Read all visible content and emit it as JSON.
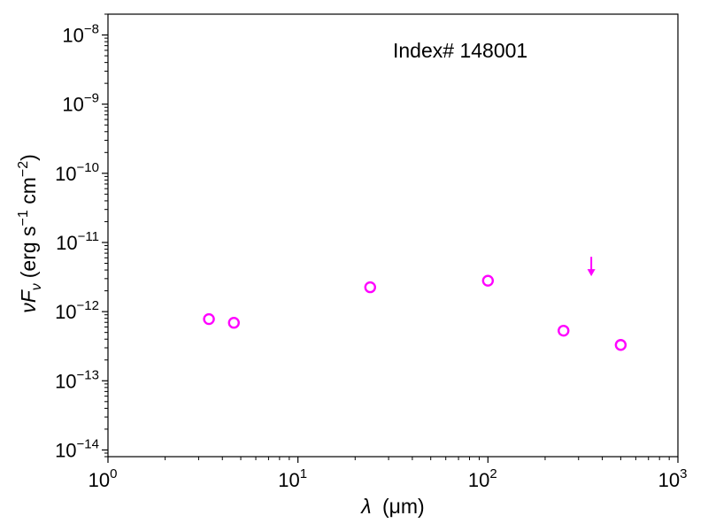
{
  "chart_data": {
    "type": "scatter",
    "annotation": "Index# 148001",
    "xlabel": {
      "symbol": "λ",
      "unit": "(μm)"
    },
    "ylabel": {
      "symbol": "νF",
      "subscript": "ν",
      "unit_prefix": "(erg s",
      "exp1": "−1",
      "unit_mid": " cm",
      "exp2": "−2",
      "unit_suffix": ")"
    },
    "x_scale": "log",
    "y_scale": "log",
    "xlim": [
      1,
      1000
    ],
    "ylim": [
      8e-15,
      2e-08
    ],
    "x_ticks": [
      {
        "value": 1,
        "base": "10",
        "exp": "0"
      },
      {
        "value": 10,
        "base": "10",
        "exp": "1"
      },
      {
        "value": 100,
        "base": "10",
        "exp": "2"
      },
      {
        "value": 1000,
        "base": "10",
        "exp": "3"
      }
    ],
    "y_ticks": [
      {
        "value": 1e-14,
        "base": "10",
        "exp": "−14"
      },
      {
        "value": 1e-13,
        "base": "10",
        "exp": "−13"
      },
      {
        "value": 1e-12,
        "base": "10",
        "exp": "−12"
      },
      {
        "value": 1e-11,
        "base": "10",
        "exp": "−11"
      },
      {
        "value": 1e-10,
        "base": "10",
        "exp": "−10"
      },
      {
        "value": 1e-09,
        "base": "10",
        "exp": "−9"
      },
      {
        "value": 1e-08,
        "base": "10",
        "exp": "−8"
      }
    ],
    "grid": false,
    "color": "#ff00ff",
    "series": [
      {
        "marker": "open-circle",
        "points": [
          {
            "x": 3.4,
            "y": 7.8e-13
          },
          {
            "x": 4.6,
            "y": 6.9e-13
          },
          {
            "x": 24,
            "y": 2.25e-12
          },
          {
            "x": 100,
            "y": 2.8e-12
          },
          {
            "x": 250,
            "y": 5.3e-13
          },
          {
            "x": 500,
            "y": 3.3e-13
          }
        ]
      },
      {
        "marker": "upper-limit-arrow",
        "points": [
          {
            "x": 350,
            "y": 5.2e-12
          }
        ]
      }
    ]
  }
}
